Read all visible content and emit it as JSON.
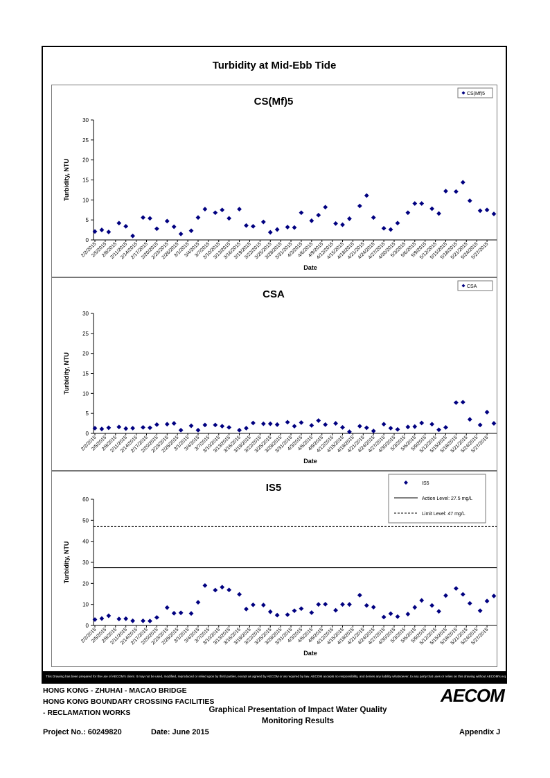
{
  "page": {
    "main_title": "Turbidity at Mid-Ebb Tide",
    "disclaimer": "This Drawing has been prepared for the use of AECOM's client. It may not be used, modified, reproduced or relied upon by third parties, except as agreed by AECOM or as required by law. AECOM accepts no responsibility, and denies any liability whatsoever, to any party that uses or relies on this drawing without AECOM's express written consent.",
    "footer": {
      "line1": "HONG KONG - ZHUHAI - MACAO BRIDGE",
      "line2": "HONG KONG BOUNDARY CROSSING FACILITIES",
      "line3": "- RECLAMATION WORKS",
      "center1": "Graphical Presentation of Impact Water Quality",
      "center2": "Monitoring Results",
      "project": "Project No.: 60249820",
      "date": "Date: June 2015",
      "appendix": "Appendix J",
      "logo": "AECOM"
    }
  },
  "colors": {
    "marker": "#000080",
    "axis": "#000000"
  },
  "x_tick_labels": [
    "2/2/2015",
    "2/5/2015",
    "2/8/2015",
    "2/11/2015",
    "2/14/2015",
    "2/17/2015",
    "2/20/2015",
    "2/23/2015",
    "2/26/2015",
    "3/1/2015",
    "3/4/2015",
    "3/7/2015",
    "3/10/2015",
    "3/13/2015",
    "3/16/2015",
    "3/19/2015",
    "3/22/2015",
    "3/25/2015",
    "3/28/2015",
    "3/31/2015",
    "4/3/2015",
    "4/6/2015",
    "4/9/2015",
    "4/12/2015",
    "4/15/2015",
    "4/18/2015",
    "4/21/2015",
    "4/24/2015",
    "4/27/2015",
    "4/30/2015",
    "5/3/2015",
    "5/6/2015",
    "5/9/2015",
    "5/12/2015",
    "5/15/2015",
    "5/18/2015",
    "5/21/2015",
    "5/24/2015",
    "5/27/2015"
  ],
  "chart_data": [
    {
      "type": "scatter",
      "title": "CS(Mf)5",
      "xlabel": "Date",
      "ylabel": "Turbidity, NTU",
      "ylim": [
        0,
        30
      ],
      "yticks": [
        0,
        5,
        10,
        15,
        20,
        25,
        30
      ],
      "xlim": [
        "2/2/2015",
        "5/29/2015"
      ],
      "legend_position": "top-right",
      "series": [
        {
          "name": "CS(Mf)5",
          "marker": "diamond",
          "x": [
            "2/2/2015",
            "2/4/2015",
            "2/6/2015",
            "2/9/2015",
            "2/11/2015",
            "2/13/2015",
            "2/16/2015",
            "2/18/2015",
            "2/20/2015",
            "2/23/2015",
            "2/25/2015",
            "2/27/2015",
            "3/2/2015",
            "3/4/2015",
            "3/6/2015",
            "3/9/2015",
            "3/11/2015",
            "3/13/2015",
            "3/16/2015",
            "3/18/2015",
            "3/20/2015",
            "3/23/2015",
            "3/25/2015",
            "3/27/2015",
            "3/30/2015",
            "4/1/2015",
            "4/3/2015",
            "4/6/2015",
            "4/8/2015",
            "4/10/2015",
            "4/13/2015",
            "4/15/2015",
            "4/17/2015",
            "4/20/2015",
            "4/22/2015",
            "4/24/2015",
            "4/27/2015",
            "4/29/2015",
            "5/1/2015",
            "5/4/2015",
            "5/6/2015",
            "5/8/2015",
            "5/11/2015",
            "5/13/2015",
            "5/15/2015",
            "5/18/2015",
            "5/20/2015",
            "5/22/2015",
            "5/25/2015",
            "5/27/2015",
            "5/29/2015"
          ],
          "y": [
            2.1,
            2.5,
            2.0,
            4.2,
            3.4,
            1.0,
            5.6,
            5.4,
            2.8,
            4.7,
            3.3,
            1.5,
            2.3,
            5.6,
            7.7,
            6.8,
            7.5,
            5.4,
            7.7,
            3.6,
            3.4,
            4.5,
            1.9,
            2.6,
            3.2,
            3.1,
            6.8,
            4.8,
            6.2,
            8.2,
            4.1,
            3.8,
            5.3,
            8.5,
            11.1,
            5.6,
            2.9,
            2.6,
            4.2,
            6.8,
            9.1,
            9.1,
            7.8,
            6.6,
            12.2,
            12.1,
            14.4,
            9.8,
            7.3,
            7.5,
            6.5
          ]
        }
      ]
    },
    {
      "type": "scatter",
      "title": "CSA",
      "xlabel": "Date",
      "ylabel": "Turbidity, NTU",
      "ylim": [
        0,
        30
      ],
      "yticks": [
        0,
        5,
        10,
        15,
        20,
        25,
        30
      ],
      "xlim": [
        "2/2/2015",
        "5/29/2015"
      ],
      "legend_position": "top-right",
      "series": [
        {
          "name": "CSA",
          "marker": "diamond",
          "x": [
            "2/2/2015",
            "2/4/2015",
            "2/6/2015",
            "2/9/2015",
            "2/11/2015",
            "2/13/2015",
            "2/16/2015",
            "2/18/2015",
            "2/20/2015",
            "2/23/2015",
            "2/25/2015",
            "2/27/2015",
            "3/2/2015",
            "3/4/2015",
            "3/6/2015",
            "3/9/2015",
            "3/11/2015",
            "3/13/2015",
            "3/16/2015",
            "3/18/2015",
            "3/20/2015",
            "3/23/2015",
            "3/25/2015",
            "3/27/2015",
            "3/30/2015",
            "4/1/2015",
            "4/3/2015",
            "4/6/2015",
            "4/8/2015",
            "4/10/2015",
            "4/13/2015",
            "4/15/2015",
            "4/17/2015",
            "4/20/2015",
            "4/22/2015",
            "4/24/2015",
            "4/27/2015",
            "4/29/2015",
            "5/1/2015",
            "5/4/2015",
            "5/6/2015",
            "5/8/2015",
            "5/11/2015",
            "5/13/2015",
            "5/15/2015",
            "5/18/2015",
            "5/20/2015",
            "5/22/2015",
            "5/25/2015",
            "5/27/2015",
            "5/29/2015"
          ],
          "y": [
            1.3,
            1.1,
            1.4,
            1.6,
            1.2,
            1.3,
            1.5,
            1.4,
            2.2,
            2.3,
            2.5,
            0.8,
            1.9,
            0.8,
            2.1,
            2.1,
            1.8,
            1.5,
            0.8,
            1.3,
            2.6,
            2.4,
            2.4,
            2.2,
            2.8,
            1.8,
            2.7,
            2.0,
            3.2,
            2.2,
            2.5,
            1.5,
            0.4,
            1.8,
            1.4,
            0.6,
            2.3,
            1.3,
            1.0,
            1.6,
            1.7,
            2.6,
            2.3,
            0.9,
            1.5,
            7.7,
            7.8,
            3.5,
            2.1,
            5.3,
            2.5
          ]
        }
      ]
    },
    {
      "type": "scatter",
      "title": "IS5",
      "xlabel": "Date",
      "ylabel": "Turbidity, NTU",
      "ylim": [
        0,
        60
      ],
      "yticks": [
        0,
        10,
        20,
        30,
        40,
        50,
        60
      ],
      "xlim": [
        "2/2/2015",
        "5/29/2015"
      ],
      "legend_position": "top-right",
      "series": [
        {
          "name": "IS5",
          "marker": "diamond",
          "x": [
            "2/2/2015",
            "2/4/2015",
            "2/6/2015",
            "2/9/2015",
            "2/11/2015",
            "2/13/2015",
            "2/16/2015",
            "2/18/2015",
            "2/20/2015",
            "2/23/2015",
            "2/25/2015",
            "2/27/2015",
            "3/2/2015",
            "3/4/2015",
            "3/6/2015",
            "3/9/2015",
            "3/11/2015",
            "3/13/2015",
            "3/16/2015",
            "3/18/2015",
            "3/20/2015",
            "3/23/2015",
            "3/25/2015",
            "3/27/2015",
            "3/30/2015",
            "4/1/2015",
            "4/3/2015",
            "4/6/2015",
            "4/8/2015",
            "4/10/2015",
            "4/13/2015",
            "4/15/2015",
            "4/17/2015",
            "4/20/2015",
            "4/22/2015",
            "4/24/2015",
            "4/27/2015",
            "4/29/2015",
            "5/1/2015",
            "5/4/2015",
            "5/6/2015",
            "5/8/2015",
            "5/11/2015",
            "5/13/2015",
            "5/15/2015",
            "5/18/2015",
            "5/20/2015",
            "5/22/2015",
            "5/25/2015",
            "5/27/2015",
            "5/29/2015"
          ],
          "y": [
            2.8,
            3.3,
            4.6,
            3.1,
            3.2,
            2.2,
            2.2,
            2.1,
            3.8,
            8.5,
            5.8,
            6.0,
            5.7,
            11.0,
            19.0,
            16.8,
            18.2,
            16.9,
            14.8,
            7.8,
            9.8,
            9.7,
            6.5,
            4.9,
            5.1,
            7.0,
            8.0,
            6.1,
            10.0,
            10.1,
            7.2,
            10.0,
            10.0,
            14.4,
            9.5,
            8.7,
            4.0,
            5.6,
            4.2,
            5.4,
            8.6,
            11.9,
            9.5,
            6.7,
            14.2,
            17.6,
            14.8,
            10.5,
            7.0,
            11.6,
            14.0
          ]
        }
      ],
      "reference_lines": [
        {
          "name": "Action Level: 27.5 mg/L",
          "value": 27.5,
          "style": "solid"
        },
        {
          "name": "Limit Level: 47 mg/L",
          "value": 47,
          "style": "dashed"
        }
      ]
    }
  ]
}
